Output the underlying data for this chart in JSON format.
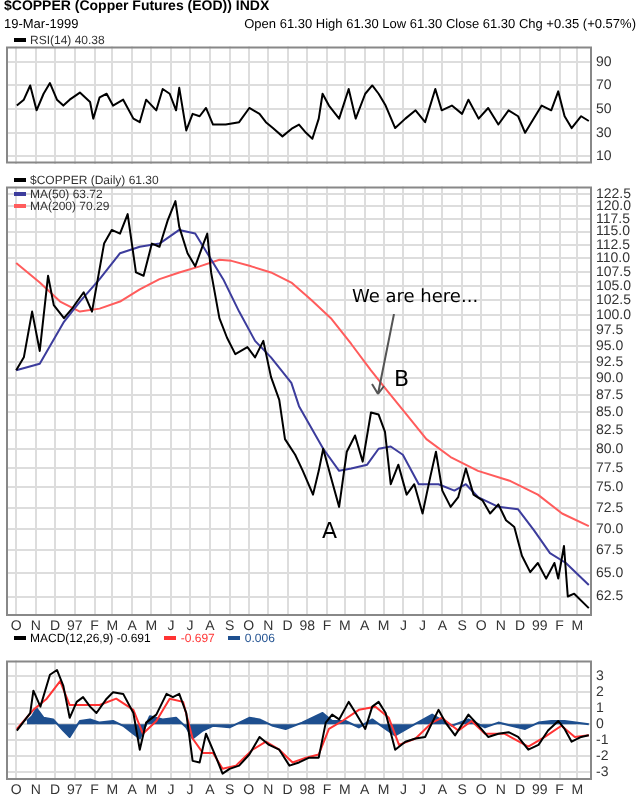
{
  "chart_data": [
    {
      "type": "line",
      "title": "$COPPER (Copper Futures (EOD)) INDX",
      "subtitle": "19-Mar-1999",
      "annotations": [
        "Open 61.30  High 61.30  Low 61.30  Close 61.30  Chg +0.35 (+0.57%)"
      ],
      "legend": "top left",
      "grid": true,
      "tick_labels": "y",
      "xlim": [
        "1996-09-15",
        "1999-03-24"
      ],
      "xticks": [
        {
          "value": "1996-10-01",
          "label": null
        },
        {
          "value": "1996-11-01",
          "label": null
        },
        {
          "value": "1996-12-01",
          "label": null
        },
        {
          "value": "1997-01-01",
          "label": null
        },
        {
          "value": "1997-02-01",
          "label": null
        },
        {
          "value": "1997-03-01",
          "label": null
        },
        {
          "value": "1997-04-01",
          "label": null
        },
        {
          "value": "1997-05-01",
          "label": null
        },
        {
          "value": "1997-06-01",
          "label": null
        },
        {
          "value": "1997-07-01",
          "label": null
        },
        {
          "value": "1997-08-01",
          "label": null
        },
        {
          "value": "1997-09-01",
          "label": null
        },
        {
          "value": "1997-10-01",
          "label": null
        },
        {
          "value": "1997-11-01",
          "label": null
        },
        {
          "value": "1997-12-01",
          "label": null
        },
        {
          "value": "1998-01-01",
          "label": null
        },
        {
          "value": "1998-02-01",
          "label": null
        },
        {
          "value": "1998-03-01",
          "label": null
        },
        {
          "value": "1998-04-01",
          "label": null
        },
        {
          "value": "1998-05-01",
          "label": null
        },
        {
          "value": "1998-06-01",
          "label": null
        },
        {
          "value": "1998-07-01",
          "label": null
        },
        {
          "value": "1998-08-01",
          "label": null
        },
        {
          "value": "1998-09-01",
          "label": null
        },
        {
          "value": "1998-10-01",
          "label": null
        },
        {
          "value": "1998-11-01",
          "label": null
        },
        {
          "value": "1998-12-01",
          "label": null
        },
        {
          "value": "1999-01-01",
          "label": null
        },
        {
          "value": "1999-02-01",
          "label": null
        },
        {
          "value": "1999-03-01",
          "label": null
        }
      ],
      "ylim": [
        4,
        103
      ],
      "yticks": [
        10,
        30,
        50,
        70,
        90
      ],
      "series": [
        {
          "name": "RSI(14) 40.38",
          "color": "#000000",
          "x": [
            "1996-10-02",
            "1996-10-13",
            "1996-10-23",
            "1996-11-02",
            "1996-11-13",
            "1996-11-23",
            "1996-12-04",
            "1996-12-14",
            "1996-12-24",
            "1997-01-09",
            "1997-01-25",
            "1997-01-30",
            "1997-02-09",
            "1997-02-20",
            "1997-03-02",
            "1997-03-18",
            "1997-04-03",
            "1997-04-13",
            "1997-04-23",
            "1997-05-09",
            "1997-05-19",
            "1997-05-30",
            "1997-06-09",
            "1997-06-14",
            "1997-06-25",
            "1997-07-05",
            "1997-07-16",
            "1997-07-26",
            "1997-08-06",
            "1997-08-26",
            "1997-09-16",
            "1997-10-02",
            "1997-10-18",
            "1997-10-28",
            "1997-11-08",
            "1997-11-23",
            "1997-12-09",
            "1997-12-19",
            "1997-12-30",
            "1998-01-09",
            "1998-01-19",
            "1998-01-25",
            "1998-02-04",
            "1998-02-20",
            "1998-03-07",
            "1998-03-18",
            "1998-04-02",
            "1998-04-13",
            "1998-04-23",
            "1998-05-04",
            "1998-05-19",
            "1998-06-04",
            "1998-06-20",
            "1998-07-05",
            "1998-07-21",
            "1998-07-31",
            "1998-08-16",
            "1998-09-01",
            "1998-09-11",
            "1998-09-27",
            "1998-10-12",
            "1998-10-28",
            "1998-11-13",
            "1998-11-28",
            "1998-12-09",
            "1998-12-19",
            "1999-01-04",
            "1999-01-19",
            "1999-01-30",
            "1999-02-09",
            "1999-02-20",
            "1999-03-07",
            "1999-03-19"
          ],
          "values": [
            53,
            58,
            70,
            49,
            63,
            72,
            58,
            53,
            58,
            64,
            56,
            42,
            60,
            63,
            53,
            58,
            42,
            39,
            58,
            49,
            67,
            63,
            49,
            68,
            32,
            46,
            44,
            51,
            37,
            37,
            39,
            51,
            46,
            39,
            34,
            27,
            34,
            37,
            30,
            25,
            42,
            63,
            53,
            42,
            67,
            42,
            63,
            70,
            63,
            53,
            34,
            42,
            49,
            39,
            67,
            49,
            53,
            46,
            58,
            42,
            51,
            37,
            49,
            44,
            30,
            39,
            53,
            49,
            65,
            44,
            34,
            44,
            40
          ]
        }
      ]
    },
    {
      "type": "line",
      "legend": "top left",
      "grid": true,
      "log": "y",
      "xlim": [
        "1996-09-15",
        "1999-03-24"
      ],
      "xticks": [
        {
          "value": "1996-10-01",
          "label": "O"
        },
        {
          "value": "1996-11-01",
          "label": "N"
        },
        {
          "value": "1996-12-01",
          "label": "D"
        },
        {
          "value": "1997-01-01",
          "label": "97"
        },
        {
          "value": "1997-02-01",
          "label": "F"
        },
        {
          "value": "1997-03-01",
          "label": "M"
        },
        {
          "value": "1997-04-01",
          "label": "A"
        },
        {
          "value": "1997-05-01",
          "label": "M"
        },
        {
          "value": "1997-06-01",
          "label": "J"
        },
        {
          "value": "1997-07-01",
          "label": "J"
        },
        {
          "value": "1997-08-01",
          "label": "A"
        },
        {
          "value": "1997-09-01",
          "label": "S"
        },
        {
          "value": "1997-10-01",
          "label": "O"
        },
        {
          "value": "1997-11-01",
          "label": "N"
        },
        {
          "value": "1997-12-01",
          "label": "D"
        },
        {
          "value": "1998-01-01",
          "label": "98"
        },
        {
          "value": "1998-02-01",
          "label": "F"
        },
        {
          "value": "1998-03-01",
          "label": "M"
        },
        {
          "value": "1998-04-01",
          "label": "A"
        },
        {
          "value": "1998-05-01",
          "label": "M"
        },
        {
          "value": "1998-06-01",
          "label": "J"
        },
        {
          "value": "1998-07-01",
          "label": "J"
        },
        {
          "value": "1998-08-01",
          "label": "A"
        },
        {
          "value": "1998-09-01",
          "label": "S"
        },
        {
          "value": "1998-10-01",
          "label": "O"
        },
        {
          "value": "1998-11-01",
          "label": "N"
        },
        {
          "value": "1998-12-01",
          "label": "D"
        },
        {
          "value": "1999-01-01",
          "label": "99"
        },
        {
          "value": "1999-02-01",
          "label": "F"
        },
        {
          "value": "1999-03-01",
          "label": "M"
        }
      ],
      "ylim": [
        60.5,
        124
      ],
      "yticks": [
        {
          "value": 62.5,
          "label": "62.5"
        },
        {
          "value": 65,
          "label": "65.0"
        },
        {
          "value": 67.5,
          "label": "67.5"
        },
        {
          "value": 70,
          "label": "70.0"
        },
        {
          "value": 72.5,
          "label": "72.5"
        },
        {
          "value": 75,
          "label": "75.0"
        },
        {
          "value": 77.5,
          "label": "77.5"
        },
        {
          "value": 80,
          "label": "80.0"
        },
        {
          "value": 82.5,
          "label": "82.5"
        },
        {
          "value": 85,
          "label": "85.0"
        },
        {
          "value": 87.5,
          "label": "87.5"
        },
        {
          "value": 90,
          "label": "90.0"
        },
        {
          "value": 92.5,
          "label": "92.5"
        },
        {
          "value": 95,
          "label": "95.0"
        },
        {
          "value": 97.5,
          "label": "97.5"
        },
        {
          "value": 100,
          "label": "100.0"
        },
        {
          "value": 102.5,
          "label": "102.5"
        },
        {
          "value": 105,
          "label": "105.0"
        },
        {
          "value": 107.5,
          "label": "107.5"
        },
        {
          "value": 110,
          "label": "110.0"
        },
        {
          "value": 112.5,
          "label": "112.5"
        },
        {
          "value": 115,
          "label": "115.0"
        },
        {
          "value": 117.5,
          "label": "117.5"
        },
        {
          "value": 120,
          "label": "120.0"
        },
        {
          "value": 122.5,
          "label": "122.5"
        }
      ],
      "annotations": [
        "We are here...",
        "A",
        "B"
      ],
      "series": [
        {
          "name": "$COPPER (Daily) 61.30",
          "color": "#000000",
          "x": [
            "1996-10-01",
            "1996-10-13",
            "1996-10-26",
            "1996-11-07",
            "1996-11-20",
            "1996-11-29",
            "1996-12-15",
            "1996-12-27",
            "1997-01-15",
            "1997-01-28",
            "1997-02-16",
            "1997-02-28",
            "1997-03-13",
            "1997-03-25",
            "1997-04-07",
            "1997-04-19",
            "1997-05-02",
            "1997-05-14",
            "1997-05-27",
            "1997-06-08",
            "1997-06-14",
            "1997-06-27",
            "1997-07-09",
            "1997-07-22",
            "1997-07-28",
            "1997-08-03",
            "1997-08-16",
            "1997-08-28",
            "1997-09-10",
            "1997-09-29",
            "1997-10-11",
            "1997-10-24",
            "1997-11-05",
            "1997-11-18",
            "1997-11-27",
            "1997-12-13",
            "1997-12-25",
            "1998-01-10",
            "1998-01-19",
            "1998-01-26",
            "1998-02-07",
            "1998-02-20",
            "1998-03-04",
            "1998-03-17",
            "1998-03-29",
            "1998-04-11",
            "1998-04-23",
            "1998-05-03",
            "1998-05-12",
            "1998-05-24",
            "1998-06-06",
            "1998-06-18",
            "1998-07-01",
            "1998-07-13",
            "1998-07-22",
            "1998-08-01",
            "1998-08-14",
            "1998-08-26",
            "1998-09-07",
            "1998-09-19",
            "1998-10-03",
            "1998-10-15",
            "1998-10-28",
            "1998-11-09",
            "1998-11-22",
            "1998-12-04",
            "1998-12-17",
            "1998-12-29",
            "1999-01-11",
            "1999-01-24",
            "1999-01-30",
            "1999-02-08",
            "1999-02-14",
            "1999-02-24",
            "1999-03-19"
          ],
          "values": [
            91.2,
            93.2,
            100.6,
            94.2,
            106.8,
            101.7,
            99.5,
            101.0,
            103.9,
            100.6,
            112.7,
            115.3,
            114.6,
            118.4,
            107.4,
            106.8,
            112.7,
            112.1,
            117.2,
            121.0,
            115.9,
            110.9,
            108.5,
            112.7,
            114.6,
            107.4,
            99.5,
            96.3,
            93.7,
            94.8,
            93.2,
            95.8,
            90.2,
            86.8,
            81.3,
            79.2,
            77.1,
            74.1,
            77.1,
            80.0,
            76.3,
            72.6,
            79.6,
            81.8,
            78.3,
            85.0,
            84.7,
            82.3,
            75.4,
            77.9,
            74.1,
            75.4,
            71.8,
            76.3,
            79.6,
            74.6,
            72.6,
            73.8,
            77.4,
            74.1,
            73.4,
            71.8,
            72.9,
            71.0,
            70.2,
            66.9,
            65.1,
            66.1,
            64.4,
            66.1,
            64.4,
            68.0,
            62.5,
            62.8,
            61.3
          ]
        },
        {
          "name": "MA(50) 63.72",
          "color": "#3c3c9c",
          "x": [
            "1996-10-01",
            "1996-11-07",
            "1996-12-15",
            "1997-01-09",
            "1997-02-09",
            "1997-03-13",
            "1997-04-13",
            "1997-05-14",
            "1997-06-14",
            "1997-07-09",
            "1997-07-28",
            "1997-08-22",
            "1997-09-16",
            "1997-10-11",
            "1997-11-05",
            "1997-12-07",
            "1997-12-19",
            "1998-01-26",
            "1998-02-20",
            "1998-03-11",
            "1998-04-05",
            "1998-04-23",
            "1998-05-12",
            "1998-05-31",
            "1998-06-25",
            "1998-07-26",
            "1998-08-20",
            "1998-09-07",
            "1998-09-26",
            "1998-10-28",
            "1998-11-28",
            "1998-12-23",
            "1999-01-17",
            "1999-02-11",
            "1999-03-19"
          ],
          "values": [
            91.2,
            92.2,
            98.9,
            102.3,
            106.2,
            110.9,
            112.1,
            112.7,
            115.3,
            114.6,
            110.9,
            106.2,
            100.6,
            95.8,
            93.2,
            89.3,
            85.9,
            80.0,
            77.1,
            77.4,
            77.9,
            80.0,
            80.3,
            79.2,
            75.4,
            75.4,
            74.6,
            75.4,
            73.8,
            72.6,
            72.3,
            69.8,
            67.2,
            66.1,
            63.72
          ]
        },
        {
          "name": "MA(200) 70.29",
          "color": "#ff5c5c",
          "x": [
            "1996-10-01",
            "1996-11-07",
            "1996-12-09",
            "1997-01-09",
            "1997-02-09",
            "1997-03-13",
            "1997-04-13",
            "1997-05-14",
            "1997-06-14",
            "1997-07-16",
            "1997-08-16",
            "1997-09-04",
            "1997-10-05",
            "1997-11-05",
            "1997-12-07",
            "1998-01-07",
            "1998-02-07",
            "1998-03-11",
            "1998-04-11",
            "1998-05-06",
            "1998-06-06",
            "1998-07-07",
            "1998-08-14",
            "1998-09-26",
            "1998-11-16",
            "1998-12-29",
            "1999-02-05",
            "1999-03-19"
          ],
          "values": [
            109.1,
            105.6,
            102.3,
            100.6,
            101.1,
            102.3,
            104.4,
            106.2,
            107.4,
            108.5,
            109.7,
            109.5,
            108.5,
            107.4,
            105.6,
            102.6,
            99.5,
            95.3,
            91.2,
            88.2,
            84.7,
            81.3,
            78.9,
            77.1,
            75.8,
            74.1,
            71.8,
            70.29
          ]
        }
      ]
    },
    {
      "type": "line",
      "legend": "top left",
      "grid": true,
      "xlim": [
        "1996-09-15",
        "1999-03-24"
      ],
      "xticks": [
        {
          "value": "1996-10-01",
          "label": "O"
        },
        {
          "value": "1996-11-01",
          "label": "N"
        },
        {
          "value": "1996-12-01",
          "label": "D"
        },
        {
          "value": "1997-01-01",
          "label": "97"
        },
        {
          "value": "1997-02-01",
          "label": "F"
        },
        {
          "value": "1997-03-01",
          "label": "M"
        },
        {
          "value": "1997-04-01",
          "label": "A"
        },
        {
          "value": "1997-05-01",
          "label": "M"
        },
        {
          "value": "1997-06-01",
          "label": "J"
        },
        {
          "value": "1997-07-01",
          "label": "J"
        },
        {
          "value": "1997-08-01",
          "label": "A"
        },
        {
          "value": "1997-09-01",
          "label": "S"
        },
        {
          "value": "1997-10-01",
          "label": "O"
        },
        {
          "value": "1997-11-01",
          "label": "N"
        },
        {
          "value": "1997-12-01",
          "label": "D"
        },
        {
          "value": "1998-01-01",
          "label": "98"
        },
        {
          "value": "1998-02-01",
          "label": "F"
        },
        {
          "value": "1998-03-01",
          "label": "M"
        },
        {
          "value": "1998-04-01",
          "label": "A"
        },
        {
          "value": "1998-05-01",
          "label": "M"
        },
        {
          "value": "1998-06-01",
          "label": "J"
        },
        {
          "value": "1998-07-01",
          "label": "J"
        },
        {
          "value": "1998-08-01",
          "label": "A"
        },
        {
          "value": "1998-09-01",
          "label": "S"
        },
        {
          "value": "1998-10-01",
          "label": "O"
        },
        {
          "value": "1998-11-01",
          "label": "N"
        },
        {
          "value": "1998-12-01",
          "label": "D"
        },
        {
          "value": "1999-01-01",
          "label": "99"
        },
        {
          "value": "1999-02-01",
          "label": "F"
        },
        {
          "value": "1999-03-01",
          "label": "M"
        }
      ],
      "ylim": [
        -3.5,
        4
      ],
      "yticks": [
        -3,
        -2,
        -1,
        0,
        1,
        2,
        3
      ],
      "series": [
        {
          "name": "MACD(12,26,9) -0.691",
          "color": "#000000",
          "x": [
            "1996-10-02",
            "1996-10-23",
            "1996-10-28",
            "1996-11-08",
            "1996-11-23",
            "1996-12-04",
            "1996-12-14",
            "1996-12-24",
            "1997-01-04",
            "1997-01-14",
            "1997-01-25",
            "1997-02-04",
            "1997-02-20",
            "1997-03-02",
            "1997-03-18",
            "1997-04-03",
            "1997-04-13",
            "1997-04-23",
            "1997-05-09",
            "1997-05-25",
            "1997-06-04",
            "1997-06-14",
            "1997-06-25",
            "1997-07-05",
            "1997-07-16",
            "1997-07-26",
            "1997-08-11",
            "1997-08-21",
            "1997-09-01",
            "1997-09-16",
            "1997-10-02",
            "1997-10-18",
            "1997-11-02",
            "1997-11-18",
            "1997-12-04",
            "1997-12-19",
            "1998-01-04",
            "1998-01-19",
            "1998-01-30",
            "1998-02-09",
            "1998-02-20",
            "1998-03-07",
            "1998-03-18",
            "1998-04-02",
            "1998-04-13",
            "1998-04-23",
            "1998-05-04",
            "1998-05-19",
            "1998-06-04",
            "1998-06-20",
            "1998-07-05",
            "1998-07-26",
            "1998-08-06",
            "1998-08-21",
            "1998-09-11",
            "1998-09-27",
            "1998-10-12",
            "1998-10-28",
            "1998-11-13",
            "1998-11-28",
            "1998-12-14",
            "1998-12-30",
            "1999-01-14",
            "1999-01-30",
            "1999-02-09",
            "1999-02-20",
            "1999-03-07",
            "1999-03-19"
          ],
          "values": [
            -0.4,
            0.7,
            2.1,
            1.1,
            3.1,
            3.4,
            2.4,
            0.4,
            1.4,
            1.7,
            1.1,
            0.7,
            1.6,
            2.0,
            1.9,
            0.7,
            -1.6,
            0.1,
            0.6,
            1.9,
            1.7,
            1.9,
            0.7,
            -2.3,
            -2.4,
            -0.6,
            -2.1,
            -3.1,
            -2.8,
            -2.6,
            -1.9,
            -0.8,
            -1.3,
            -1.6,
            -2.6,
            -2.4,
            -2.1,
            -2.1,
            0.1,
            0.6,
            0.3,
            1.4,
            0.7,
            -0.3,
            1.1,
            1.4,
            0.7,
            -1.6,
            -1.1,
            -0.9,
            -0.8,
            0.9,
            0.1,
            -0.7,
            0.6,
            -0.1,
            -0.8,
            -0.6,
            -0.5,
            -0.8,
            -1.6,
            -1.3,
            -0.4,
            0.2,
            -0.3,
            -1.1,
            -0.8,
            -0.7
          ]
        },
        {
          "name": "-0.697",
          "color": "#ff3333",
          "x": [
            "1996-10-02",
            "1996-10-28",
            "1996-11-18",
            "1996-12-09",
            "1996-12-24",
            "1997-01-14",
            "1997-02-09",
            "1997-03-07",
            "1997-04-03",
            "1997-04-18",
            "1997-05-09",
            "1997-05-30",
            "1997-06-20",
            "1997-07-05",
            "1997-07-21",
            "1997-08-06",
            "1997-08-21",
            "1997-09-11",
            "1997-10-07",
            "1997-10-28",
            "1997-11-18",
            "1997-12-09",
            "1997-12-30",
            "1998-01-19",
            "1998-02-04",
            "1998-02-25",
            "1998-03-23",
            "1998-04-18",
            "1998-05-09",
            "1998-05-25",
            "1998-06-20",
            "1998-07-16",
            "1998-07-31",
            "1998-08-26",
            "1998-09-16",
            "1998-10-07",
            "1998-11-07",
            "1998-12-14",
            "1999-01-09",
            "1999-02-04",
            "1999-02-25",
            "1999-03-19"
          ],
          "values": [
            -0.3,
            0.9,
            1.6,
            2.7,
            1.2,
            1.2,
            1.2,
            1.6,
            0.9,
            -0.6,
            0.2,
            1.6,
            1.4,
            -0.9,
            -1.8,
            -1.8,
            -2.8,
            -2.6,
            -1.6,
            -1.1,
            -1.6,
            -2.4,
            -2.1,
            -1.9,
            -0.3,
            0.2,
            0.9,
            1.1,
            0.4,
            -1.3,
            -0.9,
            0.1,
            0.4,
            -0.4,
            0.2,
            -0.6,
            -0.6,
            -1.4,
            -0.8,
            -0.1,
            -0.8,
            -0.7
          ]
        },
        {
          "name": "0.006",
          "type": "area",
          "color": "#1e4f8f",
          "x": [
            "1996-10-18",
            "1996-10-26",
            "1996-11-02",
            "1996-11-13",
            "1996-11-28",
            "1996-12-14",
            "1996-12-24",
            "1997-01-09",
            "1997-01-25",
            "1997-02-09",
            "1997-03-02",
            "1997-03-18",
            "1997-04-03",
            "1997-04-13",
            "1997-04-29",
            "1997-05-19",
            "1997-06-09",
            "1997-06-25",
            "1997-07-05",
            "1997-07-21",
            "1997-08-06",
            "1997-09-01",
            "1997-10-02",
            "1997-10-18",
            "1997-11-08",
            "1997-11-28",
            "1997-12-24",
            "1998-01-25",
            "1998-02-09",
            "1998-03-02",
            "1998-03-23",
            "1998-04-13",
            "1998-05-04",
            "1998-05-19",
            "1998-06-14",
            "1998-07-16",
            "1998-08-16",
            "1998-09-11",
            "1998-10-07",
            "1998-10-28",
            "1998-12-09",
            "1998-12-30",
            "1999-01-19",
            "1999-02-09",
            "1999-03-19"
          ],
          "values": [
            0.2,
            0.5,
            1.0,
            0.4,
            0.3,
            -0.4,
            -0.8,
            0.2,
            0.3,
            0.1,
            0.2,
            -0.1,
            -0.6,
            -0.9,
            0.5,
            0.3,
            0.4,
            -0.2,
            -0.9,
            -0.4,
            -0.1,
            -0.2,
            0.4,
            0.3,
            -0.1,
            -0.3,
            0.1,
            0.7,
            0.2,
            0.2,
            -0.2,
            0.3,
            -0.3,
            -0.7,
            -0.1,
            0.6,
            -0.1,
            0.3,
            -0.2,
            0.1,
            -0.3,
            0.1,
            0.2,
            0.2,
            0.0
          ]
        }
      ]
    }
  ]
}
